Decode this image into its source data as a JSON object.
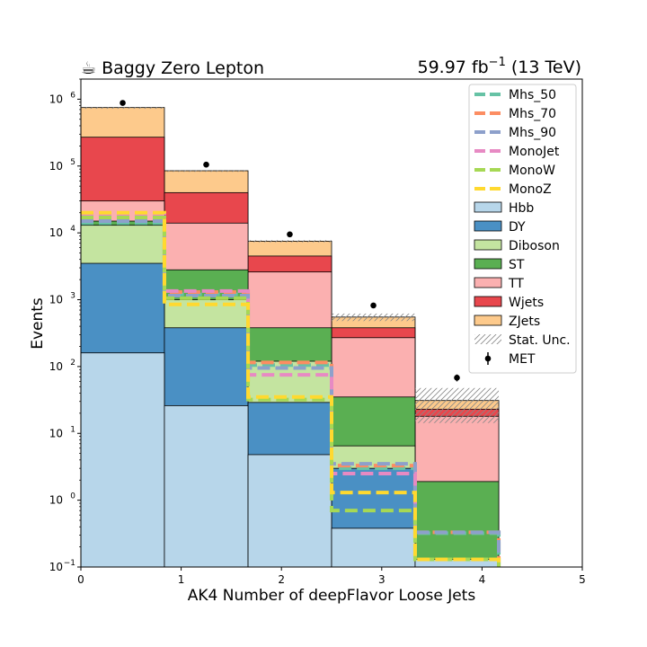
{
  "header": {
    "left_title": "☕ Baggy Zero Lepton",
    "right_title": "59.97 fb",
    "right_title_sup": "−1",
    "right_title_tail": " (13 TeV)"
  },
  "chart_data": {
    "type": "bar",
    "stacked": true,
    "log_y": true,
    "xlabel": "AK4 Number of deepFlavor Loose Jets",
    "ylabel": "Events",
    "xlim": [
      0,
      5
    ],
    "ylim": [
      0.1,
      2000000
    ],
    "bin_edges": [
      0,
      0.833,
      1.667,
      2.5,
      3.333,
      4.167
    ],
    "x_ticks": [
      "0",
      "1",
      "2",
      "3",
      "4",
      "5"
    ],
    "y_ticks": [
      {
        "value": 0.1,
        "base": "10",
        "exp": "−1"
      },
      {
        "value": 1,
        "base": "10",
        "exp": "0"
      },
      {
        "value": 10,
        "base": "10",
        "exp": "1"
      },
      {
        "value": 100,
        "base": "10",
        "exp": "2"
      },
      {
        "value": 1000,
        "base": "10",
        "exp": "3"
      },
      {
        "value": 10000,
        "base": "10",
        "exp": "4"
      },
      {
        "value": 100000,
        "base": "10",
        "exp": "5"
      },
      {
        "value": 1000000,
        "base": "10",
        "exp": "6"
      }
    ],
    "stack_series": [
      {
        "name": "Hbb",
        "color": "#b7d6ea",
        "cumulative": [
          160,
          26,
          4.8,
          0.38,
          0.13
        ]
      },
      {
        "name": "DY",
        "color": "#4a90c4",
        "cumulative": [
          3500,
          380,
          29,
          3.0,
          0.13
        ]
      },
      {
        "name": "Diboson",
        "color": "#c4e4a0",
        "cumulative": [
          13000,
          1000,
          120,
          6.5,
          0.13
        ]
      },
      {
        "name": "ST",
        "color": "#5aaf52",
        "cumulative": [
          15000,
          2800,
          380,
          35,
          1.9
        ]
      },
      {
        "name": "TT",
        "color": "#fbb0b0",
        "cumulative": [
          30000,
          14000,
          2600,
          270,
          18
        ]
      },
      {
        "name": "Wjets",
        "color": "#e8474d",
        "cumulative": [
          270000,
          40000,
          4500,
          380,
          23
        ]
      },
      {
        "name": "ZJets",
        "color": "#fdca8c",
        "cumulative": [
          750000,
          85000,
          7500,
          550,
          31
        ]
      }
    ],
    "signal_series": [
      {
        "name": "Mhs_50",
        "color": "#66c2a5",
        "values": [
          14000,
          1200,
          105,
          3.0,
          0.32
        ]
      },
      {
        "name": "Mhs_70",
        "color": "#fc8d62",
        "values": [
          16000,
          1300,
          115,
          3.3,
          0.33
        ]
      },
      {
        "name": "Mhs_90",
        "color": "#8da0cb",
        "values": [
          15000,
          1150,
          95,
          3.5,
          0.33
        ]
      },
      {
        "name": "MonoJet",
        "color": "#e78ac3",
        "values": [
          19000,
          1350,
          75,
          2.5,
          0.13
        ]
      },
      {
        "name": "MonoW",
        "color": "#a6d854",
        "values": [
          17000,
          1050,
          32,
          0.7,
          0.13
        ]
      },
      {
        "name": "MonoZ",
        "color": "#ffd92f",
        "values": [
          20000,
          850,
          35,
          1.3,
          0.13
        ]
      }
    ],
    "stat_unc": {
      "name": "Stat. Unc.",
      "color": "#888888"
    },
    "data_points": {
      "name": "MET",
      "color": "#000000",
      "x": [
        0.417,
        1.25,
        2.083,
        2.917,
        3.75
      ],
      "y": [
        880000,
        105000,
        9500,
        820,
        68
      ],
      "yerr": [
        940,
        324,
        97,
        29,
        8
      ]
    },
    "legend_position": "top-right",
    "legend_entries": [
      {
        "name": "Mhs_50",
        "kind": "dash",
        "color": "#66c2a5"
      },
      {
        "name": "Mhs_70",
        "kind": "dash",
        "color": "#fc8d62"
      },
      {
        "name": "Mhs_90",
        "kind": "dash",
        "color": "#8da0cb"
      },
      {
        "name": "MonoJet",
        "kind": "dash",
        "color": "#e78ac3"
      },
      {
        "name": "MonoW",
        "kind": "dash",
        "color": "#a6d854"
      },
      {
        "name": "MonoZ",
        "kind": "dash",
        "color": "#ffd92f"
      },
      {
        "name": "Hbb",
        "kind": "box",
        "color": "#b7d6ea"
      },
      {
        "name": "DY",
        "kind": "box",
        "color": "#4a90c4"
      },
      {
        "name": "Diboson",
        "kind": "box",
        "color": "#c4e4a0"
      },
      {
        "name": "ST",
        "kind": "box",
        "color": "#5aaf52"
      },
      {
        "name": "TT",
        "kind": "box",
        "color": "#fbb0b0"
      },
      {
        "name": "Wjets",
        "kind": "box",
        "color": "#e8474d"
      },
      {
        "name": "ZJets",
        "kind": "box",
        "color": "#fdca8c"
      },
      {
        "name": "Stat. Unc.",
        "kind": "hatch",
        "color": "#888888"
      },
      {
        "name": "MET",
        "kind": "point",
        "color": "#000000"
      }
    ]
  }
}
